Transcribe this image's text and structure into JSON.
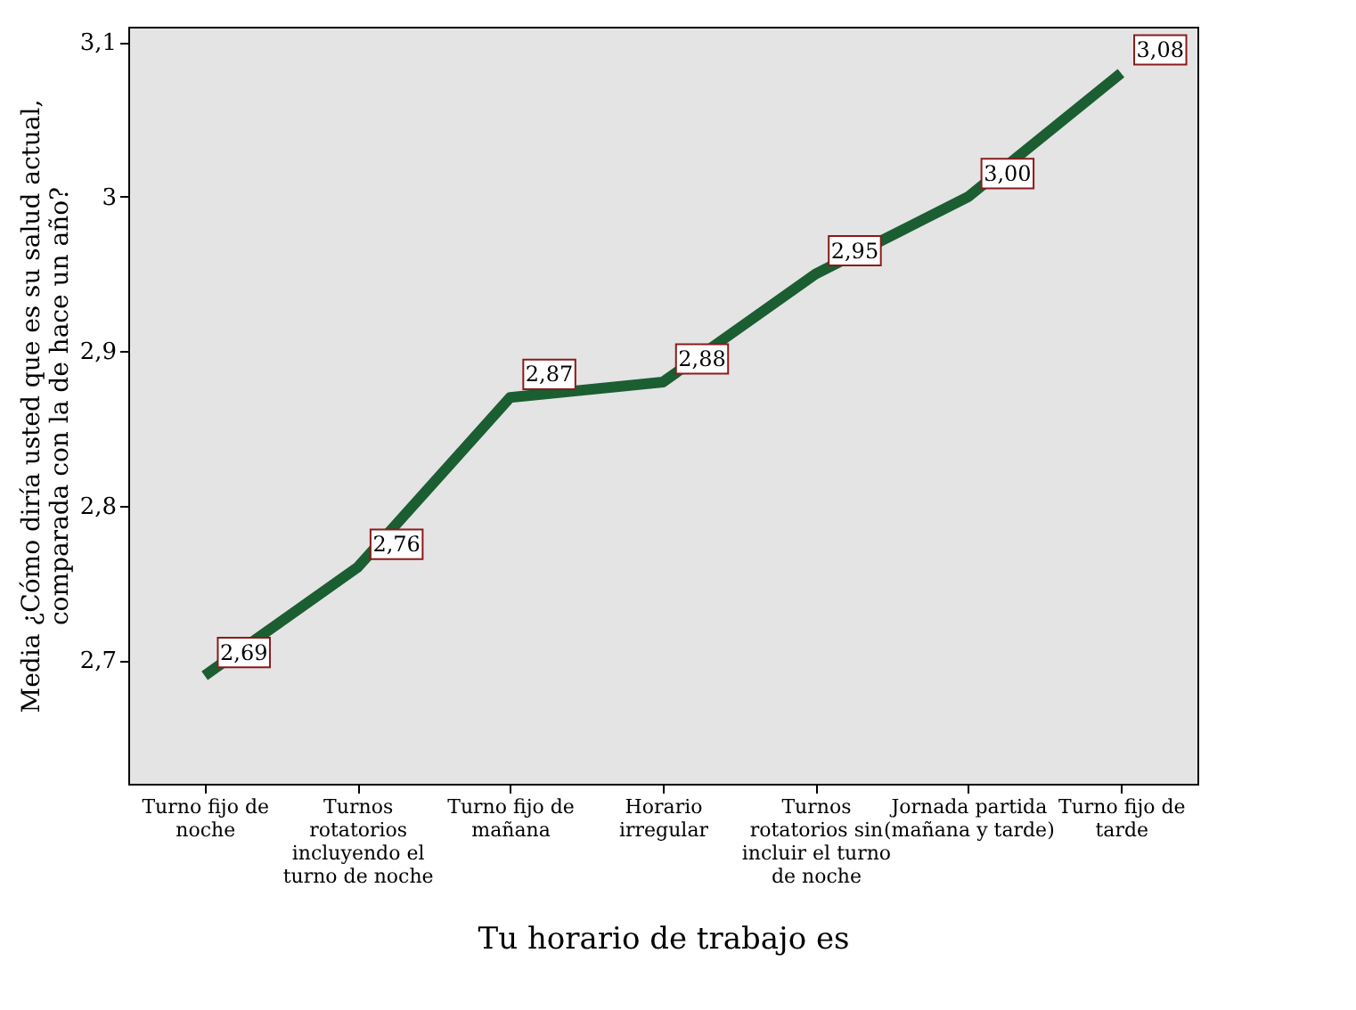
{
  "chart_data": {
    "type": "line",
    "xlabel": "Tu horario de trabajo es",
    "ylabel": "Media ¿Cómo diría usted que es su salud actual, comparada con la de hace un año?",
    "categories": [
      "Turno fijo de noche",
      "Turnos rotatorios incluyendo el turno de noche",
      "Turno fijo de mañana",
      "Horario irregular",
      "Turnos rotatorios sin incluir el turno de noche",
      "Jornada partida (mañana y tarde)",
      "Turno fijo de tarde"
    ],
    "series": [
      {
        "color": "#1b5e32",
        "values": [
          2.69,
          2.76,
          2.87,
          2.88,
          2.95,
          3.0,
          3.08
        ],
        "value_labels": [
          "2,69",
          "2,76",
          "2,87",
          "2,88",
          "2,95",
          "3,00",
          "3,08"
        ]
      }
    ],
    "ylim": [
      2.62,
      3.11
    ],
    "yticks": [
      {
        "value": 2.7,
        "label": "2,7"
      },
      {
        "value": 2.8,
        "label": "2,8"
      },
      {
        "value": 2.9,
        "label": "2,9"
      },
      {
        "value": 3.0,
        "label": "3"
      },
      {
        "value": 3.1,
        "label": "3,1"
      }
    ],
    "grid": false,
    "line_style": "solid"
  }
}
